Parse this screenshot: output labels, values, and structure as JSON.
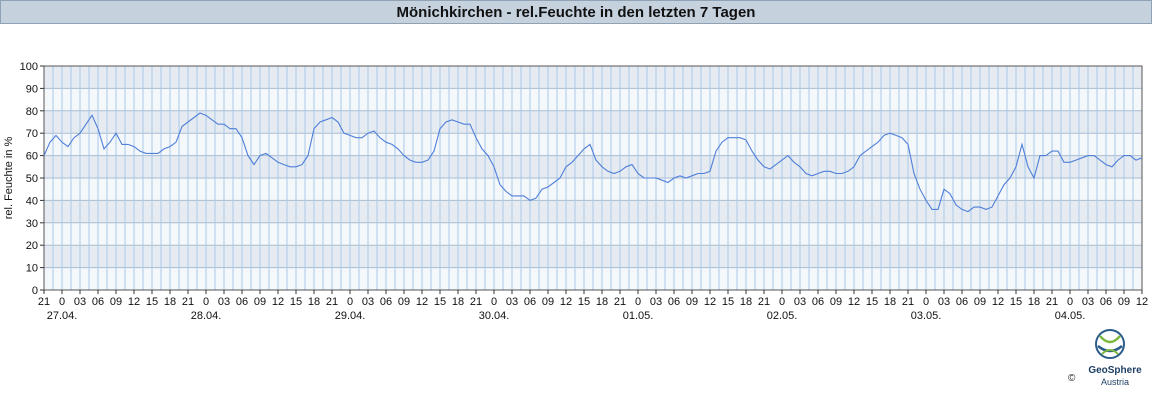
{
  "title": "Mönichkirchen - rel.Feuchte in den letzten 7 Tagen",
  "chart_data": {
    "type": "line",
    "ylabel": "rel. Feuchte in %",
    "ylim": [
      0,
      100
    ],
    "yticks": [
      0,
      10,
      20,
      30,
      40,
      50,
      60,
      70,
      80,
      90,
      100
    ],
    "x_range": [
      "2024-04-26 21:00",
      "2024-05-04 12:00"
    ],
    "hour_tick_labels": [
      "21",
      "0",
      "03",
      "06",
      "09",
      "12",
      "15",
      "18",
      "21",
      "0",
      "03",
      "06",
      "09",
      "12",
      "15",
      "18",
      "21",
      "0",
      "03",
      "06",
      "09",
      "12",
      "15",
      "18",
      "21",
      "0",
      "03",
      "06",
      "09",
      "12",
      "15",
      "18",
      "21",
      "0",
      "03",
      "06",
      "09",
      "12",
      "15",
      "18",
      "21",
      "0",
      "03",
      "06",
      "09",
      "12",
      "15",
      "18",
      "21",
      "0",
      "03",
      "06",
      "09",
      "12",
      "15",
      "18",
      "21",
      "0",
      "03",
      "06",
      "09",
      "12"
    ],
    "date_labels": [
      "27.04.",
      "28.04.",
      "29.04.",
      "30.04.",
      "01.05.",
      "02.05.",
      "03.05.",
      "04.05."
    ],
    "grid": true,
    "line_color": "#4f7fd9",
    "band_colors": [
      "#e6ebf1",
      "#f5f8fb"
    ],
    "series": [
      {
        "x_hours_from_start": [
          0,
          1,
          2,
          3,
          4,
          5,
          6,
          7,
          8,
          9,
          10,
          11,
          12,
          13,
          14,
          15,
          16,
          17,
          18,
          19,
          20,
          21,
          22,
          23,
          24,
          25,
          26,
          27,
          28,
          29,
          30,
          31,
          32,
          33,
          34,
          35,
          36,
          37,
          38,
          39,
          40,
          41,
          42,
          43,
          44,
          45,
          46,
          47,
          48,
          49,
          50,
          51,
          52,
          53,
          54,
          55,
          56,
          57,
          58,
          59,
          60,
          61,
          62,
          63,
          64,
          65,
          66,
          67,
          68,
          69,
          70,
          71,
          72,
          73,
          74,
          75,
          76,
          77,
          78,
          79,
          80,
          81,
          82,
          83,
          84,
          85,
          86,
          87,
          88,
          89,
          90,
          91,
          92,
          93,
          94,
          95,
          96,
          97,
          98,
          99,
          100,
          101,
          102,
          103,
          104,
          105,
          106,
          107,
          108,
          109,
          110,
          111,
          112,
          113,
          114,
          115,
          116,
          117,
          118,
          119,
          120,
          121,
          122,
          123,
          124,
          125,
          126,
          127,
          128,
          129,
          130,
          131,
          132,
          133,
          134,
          135,
          136,
          137,
          138,
          139,
          140,
          141,
          142,
          143,
          144,
          145,
          146,
          147,
          148,
          149,
          150,
          151,
          152,
          153,
          154,
          155,
          156,
          157,
          158,
          159,
          160,
          161,
          162,
          163,
          164,
          165,
          166,
          167,
          168,
          169,
          170,
          171,
          172,
          173,
          174,
          175,
          176,
          177,
          178,
          179,
          180,
          181,
          182,
          183
        ],
        "values": [
          60,
          66,
          69,
          66,
          64,
          68,
          70,
          74,
          78,
          72,
          63,
          66,
          70,
          65,
          65,
          64,
          62,
          61,
          61,
          61,
          63,
          64,
          66,
          73,
          75,
          77,
          79,
          78,
          76,
          74,
          74,
          72,
          72,
          68,
          60,
          56,
          60,
          61,
          59,
          57,
          56,
          55,
          55,
          56,
          60,
          72,
          75,
          76,
          77,
          75,
          70,
          69,
          68,
          68,
          70,
          71,
          68,
          66,
          65,
          63,
          60,
          58,
          57,
          57,
          58,
          62,
          72,
          75,
          76,
          75,
          74,
          74,
          68,
          63,
          60,
          55,
          47,
          44,
          42,
          42,
          42,
          40,
          41,
          45,
          46,
          48,
          50,
          55,
          57,
          60,
          63,
          65,
          58,
          55,
          53,
          52,
          53,
          55,
          56,
          52,
          50,
          50,
          50,
          49,
          48,
          50,
          51,
          50,
          51,
          52,
          52,
          53,
          62,
          66,
          68,
          68,
          68,
          67,
          62,
          58,
          55,
          54,
          56,
          58,
          60,
          57,
          55,
          52,
          51,
          52,
          53,
          53,
          52,
          52,
          53,
          55,
          60,
          62,
          64,
          66,
          69,
          70,
          69,
          68,
          65,
          52,
          45,
          40,
          36,
          36,
          45,
          43,
          38,
          36,
          35,
          37,
          37,
          36,
          37,
          42,
          47,
          50,
          55,
          65,
          55,
          50,
          60,
          60,
          62,
          62,
          57,
          57,
          58,
          59,
          60,
          60,
          58,
          56,
          55,
          58,
          60,
          60,
          58,
          59
        ]
      }
    ]
  },
  "logo": {
    "name": "GeoSphere",
    "subname": "Austria",
    "copyright": "©"
  }
}
